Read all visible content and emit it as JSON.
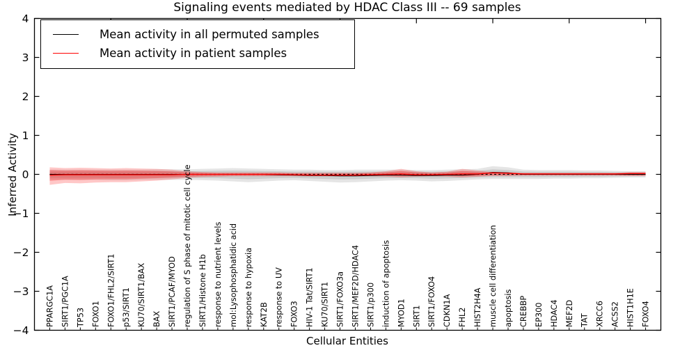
{
  "title": "Signaling events mediated by HDAC Class III -- 69 samples",
  "legend": {
    "items": [
      {
        "label": "Mean activity in all permuted samples",
        "color": "#000000"
      },
      {
        "label": "Mean activity in patient samples",
        "color": "#ff0000"
      }
    ]
  },
  "axes": {
    "xlabel": "Cellular Entities",
    "ylabel": "Inferred Activity",
    "ytick_labels": [
      "4",
      "3",
      "2",
      "1",
      "0",
      "−1",
      "−2",
      "−3",
      "−4"
    ]
  },
  "chart_data": {
    "type": "line",
    "title": "Signaling events mediated by HDAC Class III -- 69 samples",
    "xlabel": "Cellular Entities",
    "ylabel": "Inferred Activity",
    "ylim": [
      -4,
      4
    ],
    "yticks": [
      4,
      3,
      2,
      1,
      0,
      -1,
      -2,
      -3,
      -4
    ],
    "xtick_top_every": 5,
    "grid": false,
    "legend_position": "upper-left",
    "zero_line": {
      "style": "dashed",
      "color": "#000000",
      "y": 0
    },
    "categories": [
      "PPARGC1A",
      "SIRT1/PGC1A",
      "TP53",
      "FOXO1",
      "FOXO1/FHL2/SIRT1",
      "p53/SIRT1",
      "KU70/SIRT1/BAX",
      "BAX",
      "SIRT1/PCAF/MYOD",
      "regulation of S phase of mitotic cell cycle",
      "SIRT1/Histone H1b",
      "response to nutrient levels",
      "mol:Lysophosphatidic acid",
      "response to hypoxia",
      "KAT2B",
      "response to UV",
      "FOXO3",
      "HIV-1 Tat/SIRT1",
      "KU70/SIRT1",
      "SIRT1/FOXO3a",
      "SIRT1/MEF2D/HDAC4",
      "SIRT1/p300",
      "induction of apoptosis",
      "MYOD1",
      "SIRT1",
      "SIRT1/FOXO4",
      "CDKN1A",
      "FHL2",
      "HIST2H4A",
      "muscle cell differentiation",
      "apoptosis",
      "CREBBP",
      "EP300",
      "HDAC4",
      "MEF2D",
      "TAT",
      "XRCC6",
      "ACSS2",
      "HIST1H1E",
      "FOXO4"
    ],
    "series": [
      {
        "name": "Mean activity in all permuted samples",
        "color": "#000000",
        "values": [
          0.0,
          0.0,
          0.0,
          0.0,
          0.0,
          0.0,
          0.0,
          0.0,
          0.0,
          0.0,
          0.0,
          0.0,
          0.0,
          0.0,
          0.0,
          -0.01,
          -0.02,
          -0.03,
          -0.03,
          -0.04,
          -0.04,
          -0.03,
          -0.02,
          -0.02,
          -0.03,
          -0.03,
          -0.02,
          -0.02,
          0.0,
          0.05,
          0.04,
          0.0,
          0.0,
          0.0,
          0.0,
          0.0,
          0.0,
          0.0,
          0.0,
          0.0
        ]
      },
      {
        "name": "Mean activity in patient samples",
        "color": "#ff0000",
        "values": [
          -0.02,
          -0.01,
          -0.01,
          -0.01,
          -0.01,
          -0.01,
          -0.01,
          -0.01,
          -0.01,
          0.0,
          0.0,
          0.0,
          0.0,
          0.0,
          0.0,
          0.0,
          -0.01,
          -0.02,
          -0.02,
          -0.02,
          -0.02,
          -0.01,
          0.0,
          0.01,
          -0.01,
          -0.01,
          0.0,
          0.01,
          0.01,
          0.04,
          0.03,
          0.01,
          0.01,
          0.01,
          0.01,
          0.01,
          0.01,
          0.01,
          0.02,
          0.02
        ]
      }
    ],
    "bands": [
      {
        "name": "permuted samples range",
        "color": "#000000",
        "upper": [
          0.12,
          0.12,
          0.12,
          0.12,
          0.12,
          0.12,
          0.12,
          0.13,
          0.13,
          0.13,
          0.14,
          0.15,
          0.16,
          0.15,
          0.14,
          0.13,
          0.12,
          0.12,
          0.11,
          0.11,
          0.12,
          0.12,
          0.12,
          0.12,
          0.11,
          0.11,
          0.12,
          0.13,
          0.14,
          0.21,
          0.18,
          0.12,
          0.11,
          0.11,
          0.11,
          0.1,
          0.1,
          0.09,
          0.08,
          0.08
        ],
        "lower": [
          -0.14,
          -0.14,
          -0.14,
          -0.14,
          -0.15,
          -0.15,
          -0.14,
          -0.14,
          -0.14,
          -0.14,
          -0.15,
          -0.16,
          -0.18,
          -0.2,
          -0.18,
          -0.16,
          -0.15,
          -0.17,
          -0.19,
          -0.21,
          -0.2,
          -0.18,
          -0.16,
          -0.15,
          -0.16,
          -0.18,
          -0.17,
          -0.15,
          -0.13,
          -0.12,
          -0.12,
          -0.12,
          -0.12,
          -0.11,
          -0.11,
          -0.1,
          -0.1,
          -0.09,
          -0.08,
          -0.08
        ]
      },
      {
        "name": "patient samples range",
        "color": "#ff0000",
        "upper": [
          0.18,
          0.16,
          0.17,
          0.16,
          0.15,
          0.16,
          0.15,
          0.14,
          0.12,
          0.08,
          0.06,
          0.05,
          0.05,
          0.05,
          0.05,
          0.05,
          0.04,
          0.04,
          0.04,
          0.04,
          0.04,
          0.05,
          0.08,
          0.14,
          0.08,
          0.05,
          0.07,
          0.14,
          0.1,
          0.06,
          0.05,
          0.04,
          0.04,
          0.04,
          0.04,
          0.04,
          0.04,
          0.04,
          0.06,
          0.06
        ],
        "lower": [
          -0.27,
          -0.22,
          -0.23,
          -0.21,
          -0.2,
          -0.2,
          -0.18,
          -0.16,
          -0.13,
          -0.09,
          -0.07,
          -0.06,
          -0.05,
          -0.05,
          -0.05,
          -0.05,
          -0.05,
          -0.05,
          -0.05,
          -0.05,
          -0.05,
          -0.05,
          -0.06,
          -0.08,
          -0.06,
          -0.05,
          -0.06,
          -0.08,
          -0.06,
          -0.04,
          -0.04,
          -0.03,
          -0.03,
          -0.03,
          -0.03,
          -0.03,
          -0.03,
          -0.03,
          -0.04,
          -0.04
        ]
      }
    ]
  }
}
